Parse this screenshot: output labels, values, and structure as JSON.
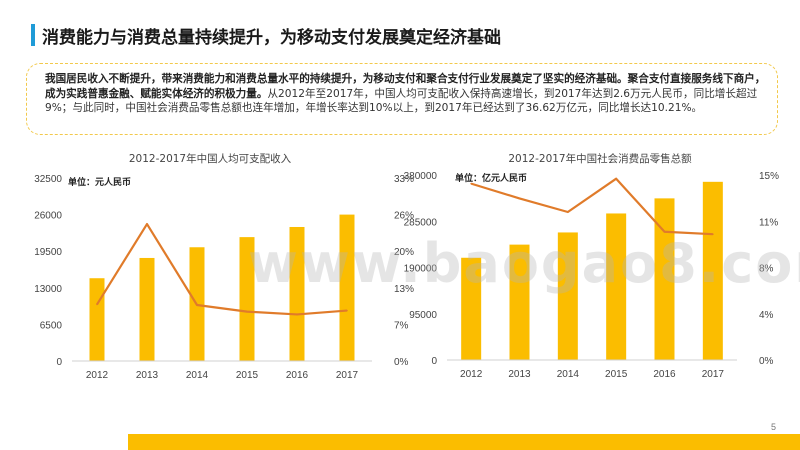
{
  "page": {
    "title": "消费能力与消费总量持续提升，为移动支付发展奠定经济基础",
    "summary_bold": "我国居民收入不断提升，带来消费能力和消费总量水平的持续提升，为移动支付和聚合支付行业发展奠定了坚实的经济基础。聚合支付直接服务线下商户，成为实践普惠金融、赋能实体经济的积极力量。",
    "summary_text": "从2012年至2017年，中国人均可支配收入保持高速增长，到2017年达到2.6万元人民币，同比增长超过9%；与此同时，中国社会消费品零售总额也连年增加，年增长率达到10%以上，到2017年已经达到了36.62万亿元，同比增长达10.21%。",
    "page_number": "5",
    "watermark": "www.baogao8.com"
  },
  "colors": {
    "accent": "#1f9bd7",
    "bar": "#fbbd00",
    "line": "#e07b2a",
    "dashed_border": "#f2c94c"
  },
  "chart_data": [
    {
      "type": "bar",
      "title": "2012-2017年中国人均可支配收入",
      "unit_label": "单位：元人民币",
      "categories": [
        "2012",
        "2013",
        "2014",
        "2015",
        "2016",
        "2017"
      ],
      "series": [
        {
          "values": [
            14700,
            18300,
            20200,
            22000,
            23800,
            26000
          ],
          "kind": "bar",
          "axis": "left"
        },
        {
          "values": [
            0.102,
            0.247,
            0.101,
            0.089,
            0.084,
            0.091
          ],
          "kind": "line",
          "axis": "right"
        }
      ],
      "left_axis": {
        "ticks": [
          "0",
          "6500",
          "13000",
          "19500",
          "26000",
          "32500"
        ],
        "min": 0,
        "max": 32500
      },
      "right_axis": {
        "ticks": [
          "0%",
          "7%",
          "13%",
          "20%",
          "26%",
          "33%"
        ],
        "min": 0,
        "max": 0.33
      },
      "grid": false
    },
    {
      "type": "bar",
      "title": "2012-2017年中国社会消费品零售总额",
      "unit_label": "单位：亿元人民币",
      "categories": [
        "2012",
        "2013",
        "2014",
        "2015",
        "2016",
        "2017"
      ],
      "series": [
        {
          "values": [
            210000,
            237000,
            262000,
            301000,
            332000,
            366000
          ],
          "kind": "bar",
          "axis": "left"
        },
        {
          "values": [
            0.143,
            0.131,
            0.12,
            0.147,
            0.104,
            0.102
          ],
          "kind": "line",
          "axis": "right"
        }
      ],
      "left_axis": {
        "ticks": [
          "0",
          "95000",
          "190000",
          "285000",
          "380000"
        ],
        "min": 0,
        "max": 380000
      },
      "right_axis": {
        "ticks": [
          "0%",
          "4%",
          "8%",
          "11%",
          "15%"
        ],
        "min": 0,
        "max": 0.15
      },
      "grid": false
    }
  ]
}
